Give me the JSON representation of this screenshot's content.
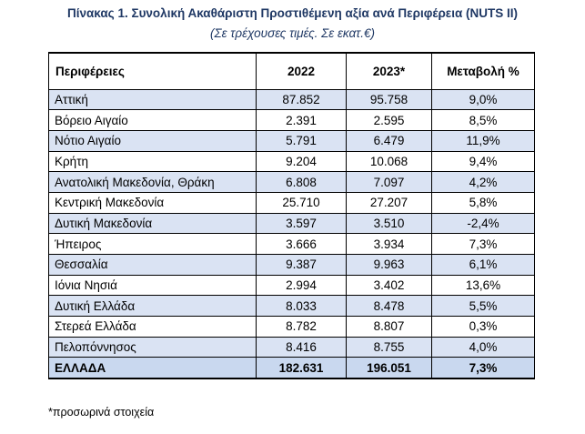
{
  "title": "Πίνακας 1. Συνολική Ακαθάριστη Προστιθέμενη αξία ανά  Περιφέρεια (NUTS II)",
  "subtitle": "(Σε τρέχουσες τιμές. Σε εκατ.€)",
  "table": {
    "headers": [
      "Περιφέρειες",
      "2022",
      "2023*",
      "Μεταβολή %"
    ],
    "rows": [
      [
        "Αττική",
        "87.852",
        "95.758",
        "9,0%"
      ],
      [
        "Βόρειο Αιγαίο",
        "2.391",
        "2.595",
        "8,5%"
      ],
      [
        "Νότιο Αιγαίο",
        "5.791",
        "6.479",
        "11,9%"
      ],
      [
        "Κρήτη",
        "9.204",
        "10.068",
        "9,4%"
      ],
      [
        "Ανατολική Μακεδονία, Θράκη",
        "6.808",
        "7.097",
        "4,2%"
      ],
      [
        "Κεντρική Μακεδονία",
        "25.710",
        "27.207",
        "5,8%"
      ],
      [
        "Δυτική Μακεδονία",
        "3.597",
        "3.510",
        "-2,4%"
      ],
      [
        "Ήπειρος",
        "3.666",
        "3.934",
        "7,3%"
      ],
      [
        "Θεσσαλία",
        "9.387",
        "9.963",
        "6,1%"
      ],
      [
        "Ιόνια Νησιά",
        "2.994",
        "3.402",
        "13,6%"
      ],
      [
        "Δυτική Ελλάδα",
        "8.033",
        "8.478",
        "5,5%"
      ],
      [
        "Στερεά Ελλάδα",
        "8.782",
        "8.807",
        "0,3%"
      ],
      [
        "Πελοπόννησος",
        "8.416",
        "8.755",
        "4,0%"
      ]
    ],
    "total": [
      "ΕΛΛΑΔΑ",
      "182.631",
      "196.051",
      "7,3%"
    ],
    "shaded_color": "#dae3f3",
    "total_color": "#c9d8ef"
  },
  "footnote": "*προσωρινά στοιχεία"
}
